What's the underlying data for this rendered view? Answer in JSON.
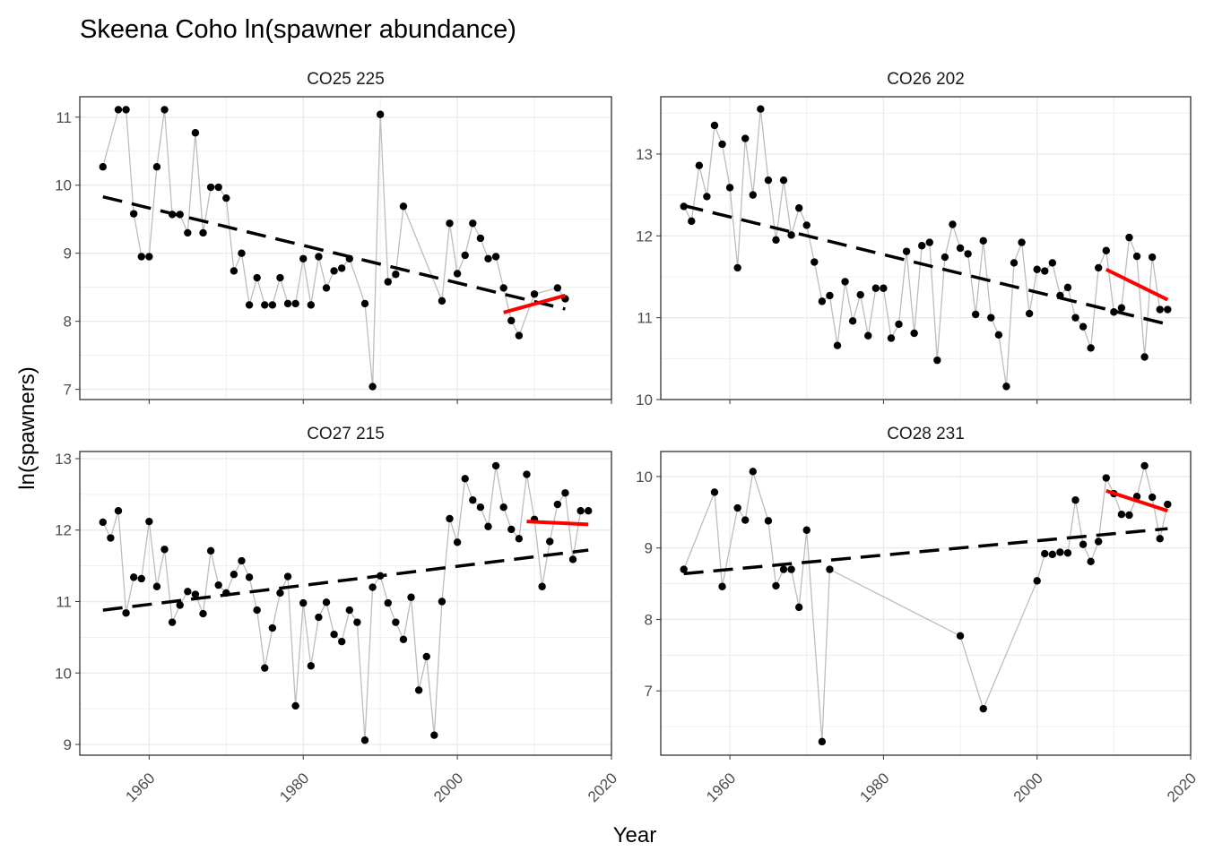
{
  "figure": {
    "title": "Skeena Coho ln(spawner abundance)",
    "xlabel": "Year",
    "ylabel": "ln(spawners)"
  },
  "style": {
    "point_color": "#000000",
    "line_color": "#bdbdbd",
    "long_trend_color": "#000000",
    "recent_trend_color": "#ff0000",
    "grid_color": "#ebebeb",
    "panel_border": "#333333"
  },
  "chart_data": [
    {
      "type": "scatter",
      "panel": "CO25 225",
      "xlim": [
        1951,
        2020
      ],
      "ylim": [
        6.85,
        11.3
      ],
      "xticks": [
        1960,
        1980,
        2000,
        2020
      ],
      "yticks": [
        7,
        8,
        9,
        10,
        11
      ],
      "series": [
        {
          "years": [
            1954,
            1956,
            1957,
            1958,
            1959,
            1960,
            1961,
            1962,
            1963,
            1964,
            1965,
            1966,
            1967,
            1968,
            1969,
            1970,
            1971,
            1972,
            1973,
            1974,
            1975,
            1976,
            1977,
            1978,
            1979,
            1980,
            1981,
            1982,
            1983,
            1984,
            1985,
            1986,
            1988,
            1989,
            1990,
            1991,
            1992,
            1993,
            1998,
            1999,
            2000,
            2001,
            2002,
            2003,
            2004,
            2005,
            2006,
            2007,
            2008,
            2010,
            2013,
            2014
          ],
          "values": [
            10.27,
            11.11,
            11.11,
            9.58,
            8.95,
            8.95,
            10.27,
            11.11,
            9.57,
            9.57,
            9.3,
            10.77,
            9.3,
            9.97,
            9.97,
            9.81,
            8.74,
            9.0,
            8.24,
            8.64,
            8.24,
            8.24,
            8.64,
            8.26,
            8.26,
            8.92,
            8.24,
            8.95,
            8.49,
            8.74,
            8.78,
            8.92,
            8.26,
            7.04,
            11.04,
            8.58,
            8.69,
            9.69,
            8.3,
            9.44,
            8.7,
            8.97,
            9.44,
            9.22,
            8.92,
            8.95,
            8.49,
            8.01,
            7.79,
            8.4,
            8.49,
            8.33
          ]
        }
      ],
      "long_trend": {
        "x": [
          1954,
          2014
        ],
        "y": [
          9.83,
          8.18
        ]
      },
      "recent_trend": {
        "x": [
          2006,
          2014
        ],
        "y": [
          8.13,
          8.38
        ]
      }
    },
    {
      "type": "scatter",
      "panel": "CO26 202",
      "xlim": [
        1951,
        2020
      ],
      "ylim": [
        10.0,
        13.7
      ],
      "xticks": [
        1960,
        1980,
        2000,
        2020
      ],
      "yticks": [
        10,
        11,
        12,
        13
      ],
      "series": [
        {
          "years": [
            1954,
            1955,
            1956,
            1957,
            1958,
            1959,
            1960,
            1961,
            1962,
            1963,
            1964,
            1965,
            1966,
            1967,
            1968,
            1969,
            1970,
            1971,
            1972,
            1973,
            1974,
            1975,
            1976,
            1977,
            1978,
            1979,
            1980,
            1981,
            1982,
            1983,
            1984,
            1985,
            1986,
            1987,
            1988,
            1989,
            1990,
            1991,
            1992,
            1993,
            1994,
            1995,
            1996,
            1997,
            1998,
            1999,
            2000,
            2001,
            2002,
            2003,
            2004,
            2005,
            2006,
            2007,
            2008,
            2009,
            2010,
            2011,
            2012,
            2013,
            2014,
            2015,
            2016,
            2017
          ],
          "values": [
            12.36,
            12.18,
            12.86,
            12.48,
            13.35,
            13.12,
            12.59,
            11.61,
            13.19,
            12.5,
            13.55,
            12.68,
            11.95,
            12.68,
            12.01,
            12.34,
            12.13,
            11.68,
            11.2,
            11.27,
            10.66,
            11.44,
            10.96,
            11.28,
            10.78,
            11.36,
            11.36,
            10.75,
            10.92,
            11.81,
            10.81,
            11.88,
            11.92,
            10.48,
            11.74,
            12.14,
            11.85,
            11.78,
            11.04,
            11.94,
            11.0,
            10.79,
            10.16,
            11.67,
            11.92,
            11.05,
            11.59,
            11.57,
            11.67,
            11.27,
            11.37,
            11.0,
            10.89,
            10.63,
            11.61,
            11.82,
            11.07,
            11.12,
            11.98,
            11.75,
            10.52,
            11.74,
            11.1,
            11.1
          ]
        }
      ],
      "long_trend": {
        "x": [
          1954,
          2017
        ],
        "y": [
          12.37,
          10.92
        ]
      },
      "recent_trend": {
        "x": [
          2009,
          2017
        ],
        "y": [
          11.59,
          11.22
        ]
      }
    },
    {
      "type": "scatter",
      "panel": "CO27 215",
      "xlim": [
        1951,
        2020
      ],
      "ylim": [
        8.85,
        13.1
      ],
      "xticks": [
        1960,
        1980,
        2000,
        2020
      ],
      "yticks": [
        9,
        10,
        11,
        12,
        13
      ],
      "series": [
        {
          "years": [
            1954,
            1955,
            1956,
            1957,
            1958,
            1959,
            1960,
            1961,
            1962,
            1963,
            1964,
            1965,
            1966,
            1967,
            1968,
            1969,
            1970,
            1971,
            1972,
            1973,
            1974,
            1975,
            1976,
            1977,
            1978,
            1979,
            1980,
            1981,
            1982,
            1983,
            1984,
            1985,
            1986,
            1987,
            1988,
            1989,
            1990,
            1991,
            1992,
            1993,
            1994,
            1995,
            1996,
            1997,
            1998,
            1999,
            2000,
            2001,
            2002,
            2003,
            2004,
            2005,
            2006,
            2007,
            2008,
            2009,
            2010,
            2011,
            2012,
            2013,
            2014,
            2015,
            2016,
            2017
          ],
          "values": [
            12.11,
            11.89,
            12.27,
            10.84,
            11.34,
            11.32,
            12.12,
            11.21,
            11.73,
            10.71,
            10.95,
            11.14,
            11.1,
            10.83,
            11.71,
            11.23,
            11.12,
            11.38,
            11.57,
            11.34,
            10.88,
            10.07,
            10.63,
            11.12,
            11.35,
            9.54,
            10.98,
            10.1,
            10.78,
            10.99,
            10.54,
            10.44,
            10.88,
            10.71,
            9.06,
            11.2,
            11.36,
            10.98,
            10.71,
            10.47,
            11.06,
            9.76,
            10.23,
            9.13,
            11.0,
            12.16,
            11.83,
            12.72,
            12.42,
            12.32,
            12.05,
            12.9,
            12.32,
            12.01,
            11.88,
            12.78,
            12.15,
            11.21,
            11.84,
            12.36,
            12.52,
            11.59,
            12.27,
            12.27
          ]
        }
      ],
      "long_trend": {
        "x": [
          1954,
          2017
        ],
        "y": [
          10.88,
          11.72
        ]
      },
      "recent_trend": {
        "x": [
          2009,
          2017
        ],
        "y": [
          12.12,
          12.08
        ]
      }
    },
    {
      "type": "scatter",
      "panel": "CO28 231",
      "xlim": [
        1951,
        2020
      ],
      "ylim": [
        6.1,
        10.35
      ],
      "xticks": [
        1960,
        1980,
        2000,
        2020
      ],
      "yticks": [
        7,
        8,
        9,
        10
      ],
      "series": [
        {
          "years": [
            1954,
            1958,
            1959,
            1961,
            1962,
            1963,
            1965,
            1966,
            1967,
            1968,
            1969,
            1970,
            1972,
            1973,
            1990,
            1993,
            2000,
            2001,
            2002,
            2003,
            2004,
            2005,
            2006,
            2007,
            2008,
            2009,
            2010,
            2011,
            2012,
            2013,
            2014,
            2015,
            2016,
            2017
          ],
          "values": [
            8.7,
            9.78,
            8.46,
            9.56,
            9.39,
            10.07,
            9.38,
            8.47,
            8.7,
            8.7,
            8.17,
            9.25,
            6.29,
            8.7,
            7.77,
            6.75,
            8.54,
            8.92,
            8.91,
            8.94,
            8.93,
            9.67,
            9.05,
            8.81,
            9.09,
            9.98,
            9.76,
            9.47,
            9.46,
            9.72,
            10.15,
            9.71,
            9.13,
            9.61
          ]
        }
      ],
      "long_trend": {
        "x": [
          1954,
          2017
        ],
        "y": [
          8.64,
          9.27
        ]
      },
      "recent_trend": {
        "x": [
          2009,
          2017
        ],
        "y": [
          9.8,
          9.52
        ]
      }
    }
  ]
}
